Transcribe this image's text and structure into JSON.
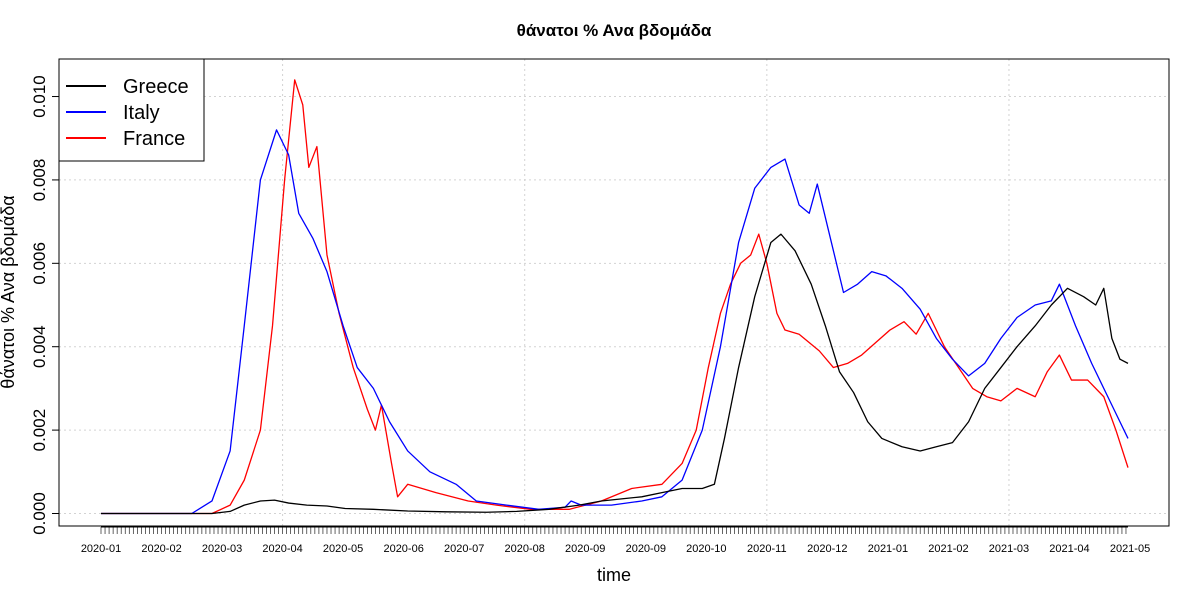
{
  "chart_data": {
    "type": "line",
    "title": "θάνατοι %  Ανα βδομάδα",
    "xlabel": "time",
    "ylabel": "θάνατοι %  Ανα βδομάδα",
    "x_range": [
      "2020-01-01",
      "2021-05-24"
    ],
    "ylim": [
      -0.0003,
      0.0109
    ],
    "y_ticks": [
      "0.000",
      "0.002",
      "0.004",
      "0.006",
      "0.008",
      "0.010"
    ],
    "y_tick_values": [
      0,
      0.002,
      0.004,
      0.006,
      0.008,
      0.01
    ],
    "x_tick_labels": [
      "2020-01",
      "2020-02",
      "2020-03",
      "2020-04",
      "2020-05",
      "2020-06",
      "2020-07",
      "2020-08",
      "2020-09",
      "2020-09",
      "2020-10",
      "2020-11",
      "2020-12",
      "2021-01",
      "2021-02",
      "2021-03",
      "2021-04",
      "2021-05"
    ],
    "x_tick_dates": [
      "2020-01-01",
      "2020-01-31",
      "2020-03-01",
      "2020-03-31",
      "2020-04-30",
      "2020-05-30",
      "2020-06-29",
      "2020-07-29",
      "2020-08-28",
      "2020-09-27",
      "2020-10-27",
      "2020-11-26",
      "2020-12-26",
      "2021-01-25",
      "2021-02-24",
      "2021-03-26",
      "2021-04-25",
      "2021-05-25"
    ],
    "grid": true,
    "legend_position": "top-left",
    "series": [
      {
        "name": "Greece",
        "color": "#000000",
        "points": [
          [
            "2020-01-01",
            0
          ],
          [
            "2020-02-25",
            0
          ],
          [
            "2020-03-05",
            5e-05
          ],
          [
            "2020-03-12",
            0.0002
          ],
          [
            "2020-03-20",
            0.0003
          ],
          [
            "2020-03-27",
            0.00032
          ],
          [
            "2020-04-03",
            0.00025
          ],
          [
            "2020-04-12",
            0.0002
          ],
          [
            "2020-04-22",
            0.00018
          ],
          [
            "2020-05-01",
            0.00012
          ],
          [
            "2020-05-15",
            0.0001
          ],
          [
            "2020-06-01",
            6e-05
          ],
          [
            "2020-06-20",
            4e-05
          ],
          [
            "2020-07-10",
            3e-05
          ],
          [
            "2020-07-25",
            5e-05
          ],
          [
            "2020-08-10",
            0.0001
          ],
          [
            "2020-08-25",
            0.0002
          ],
          [
            "2020-09-05",
            0.0003
          ],
          [
            "2020-09-15",
            0.00035
          ],
          [
            "2020-09-25",
            0.0004
          ],
          [
            "2020-10-05",
            0.0005
          ],
          [
            "2020-10-15",
            0.0006
          ],
          [
            "2020-10-25",
            0.0006
          ],
          [
            "2020-10-31",
            0.0007
          ],
          [
            "2020-11-05",
            0.0018
          ],
          [
            "2020-11-12",
            0.0035
          ],
          [
            "2020-11-20",
            0.0052
          ],
          [
            "2020-11-28",
            0.0065
          ],
          [
            "2020-12-03",
            0.0067
          ],
          [
            "2020-12-10",
            0.0063
          ],
          [
            "2020-12-18",
            0.0055
          ],
          [
            "2020-12-25",
            0.0045
          ],
          [
            "2021-01-01",
            0.0034
          ],
          [
            "2021-01-08",
            0.0029
          ],
          [
            "2021-01-15",
            0.0022
          ],
          [
            "2021-01-22",
            0.0018
          ],
          [
            "2021-02-01",
            0.0016
          ],
          [
            "2021-02-10",
            0.0015
          ],
          [
            "2021-02-18",
            0.0016
          ],
          [
            "2021-02-26",
            0.0017
          ],
          [
            "2021-03-06",
            0.0022
          ],
          [
            "2021-03-14",
            0.003
          ],
          [
            "2021-03-22",
            0.0035
          ],
          [
            "2021-03-30",
            0.004
          ],
          [
            "2021-04-08",
            0.0045
          ],
          [
            "2021-04-16",
            0.005
          ],
          [
            "2021-04-24",
            0.0054
          ],
          [
            "2021-05-02",
            0.0052
          ],
          [
            "2021-05-08",
            0.005
          ],
          [
            "2021-05-12",
            0.0054
          ],
          [
            "2021-05-16",
            0.0042
          ],
          [
            "2021-05-20",
            0.0037
          ],
          [
            "2021-05-24",
            0.0036
          ]
        ]
      },
      {
        "name": "Italy",
        "color": "#0000ff",
        "points": [
          [
            "2020-01-01",
            0
          ],
          [
            "2020-02-15",
            0
          ],
          [
            "2020-02-25",
            0.0003
          ],
          [
            "2020-03-05",
            0.0015
          ],
          [
            "2020-03-12",
            0.0045
          ],
          [
            "2020-03-20",
            0.008
          ],
          [
            "2020-03-28",
            0.0092
          ],
          [
            "2020-04-03",
            0.0086
          ],
          [
            "2020-04-08",
            0.0072
          ],
          [
            "2020-04-15",
            0.0066
          ],
          [
            "2020-04-22",
            0.0058
          ],
          [
            "2020-04-30",
            0.0045
          ],
          [
            "2020-05-07",
            0.0035
          ],
          [
            "2020-05-15",
            0.003
          ],
          [
            "2020-05-23",
            0.0022
          ],
          [
            "2020-06-01",
            0.0015
          ],
          [
            "2020-06-12",
            0.001
          ],
          [
            "2020-06-25",
            0.0007
          ],
          [
            "2020-07-05",
            0.0003
          ],
          [
            "2020-07-20",
            0.0002
          ],
          [
            "2020-08-05",
            0.0001
          ],
          [
            "2020-08-18",
            0.00015
          ],
          [
            "2020-08-21",
            0.0003
          ],
          [
            "2020-08-26",
            0.0002
          ],
          [
            "2020-09-10",
            0.0002
          ],
          [
            "2020-09-25",
            0.0003
          ],
          [
            "2020-10-05",
            0.0004
          ],
          [
            "2020-10-15",
            0.0008
          ],
          [
            "2020-10-25",
            0.002
          ],
          [
            "2020-11-03",
            0.004
          ],
          [
            "2020-11-12",
            0.0065
          ],
          [
            "2020-11-20",
            0.0078
          ],
          [
            "2020-11-28",
            0.0083
          ],
          [
            "2020-12-05",
            0.0085
          ],
          [
            "2020-12-12",
            0.0074
          ],
          [
            "2020-12-17",
            0.0072
          ],
          [
            "2020-12-21",
            0.0079
          ],
          [
            "2020-12-28",
            0.0065
          ],
          [
            "2021-01-03",
            0.0053
          ],
          [
            "2021-01-10",
            0.0055
          ],
          [
            "2021-01-17",
            0.0058
          ],
          [
            "2021-01-24",
            0.0057
          ],
          [
            "2021-02-01",
            0.0054
          ],
          [
            "2021-02-10",
            0.0049
          ],
          [
            "2021-02-18",
            0.0042
          ],
          [
            "2021-02-26",
            0.0037
          ],
          [
            "2021-03-06",
            0.0033
          ],
          [
            "2021-03-14",
            0.0036
          ],
          [
            "2021-03-22",
            0.0042
          ],
          [
            "2021-03-30",
            0.0047
          ],
          [
            "2021-04-08",
            0.005
          ],
          [
            "2021-04-16",
            0.0051
          ],
          [
            "2021-04-20",
            0.0055
          ],
          [
            "2021-04-28",
            0.0045
          ],
          [
            "2021-05-06",
            0.0036
          ],
          [
            "2021-05-14",
            0.0028
          ],
          [
            "2021-05-20",
            0.0022
          ],
          [
            "2021-05-24",
            0.0018
          ]
        ]
      },
      {
        "name": "France",
        "color": "#ff0000",
        "points": [
          [
            "2020-01-01",
            0
          ],
          [
            "2020-02-25",
            0
          ],
          [
            "2020-03-05",
            0.0002
          ],
          [
            "2020-03-12",
            0.0008
          ],
          [
            "2020-03-20",
            0.002
          ],
          [
            "2020-03-26",
            0.0045
          ],
          [
            "2020-04-01",
            0.008
          ],
          [
            "2020-04-06",
            0.0104
          ],
          [
            "2020-04-10",
            0.0098
          ],
          [
            "2020-04-13",
            0.0083
          ],
          [
            "2020-04-17",
            0.0088
          ],
          [
            "2020-04-22",
            0.0062
          ],
          [
            "2020-04-28",
            0.0048
          ],
          [
            "2020-05-05",
            0.0035
          ],
          [
            "2020-05-12",
            0.0025
          ],
          [
            "2020-05-16",
            0.002
          ],
          [
            "2020-05-19",
            0.0026
          ],
          [
            "2020-05-24",
            0.0012
          ],
          [
            "2020-05-27",
            0.0004
          ],
          [
            "2020-06-01",
            0.0007
          ],
          [
            "2020-06-15",
            0.0005
          ],
          [
            "2020-07-01",
            0.0003
          ],
          [
            "2020-07-15",
            0.0002
          ],
          [
            "2020-08-01",
            0.0001
          ],
          [
            "2020-08-20",
            0.0001
          ],
          [
            "2020-09-05",
            0.0003
          ],
          [
            "2020-09-20",
            0.0006
          ],
          [
            "2020-10-05",
            0.0007
          ],
          [
            "2020-10-15",
            0.0012
          ],
          [
            "2020-10-22",
            0.002
          ],
          [
            "2020-10-28",
            0.0035
          ],
          [
            "2020-11-03",
            0.0048
          ],
          [
            "2020-11-08",
            0.0055
          ],
          [
            "2020-11-13",
            0.006
          ],
          [
            "2020-11-18",
            0.0062
          ],
          [
            "2020-11-22",
            0.0067
          ],
          [
            "2020-11-26",
            0.006
          ],
          [
            "2020-12-01",
            0.0048
          ],
          [
            "2020-12-05",
            0.0044
          ],
          [
            "2020-12-12",
            0.0043
          ],
          [
            "2020-12-22",
            0.0039
          ],
          [
            "2020-12-29",
            0.0035
          ],
          [
            "2021-01-05",
            0.0036
          ],
          [
            "2021-01-12",
            0.0038
          ],
          [
            "2021-01-19",
            0.0041
          ],
          [
            "2021-01-26",
            0.0044
          ],
          [
            "2021-02-02",
            0.0046
          ],
          [
            "2021-02-08",
            0.0043
          ],
          [
            "2021-02-14",
            0.0048
          ],
          [
            "2021-02-22",
            0.004
          ],
          [
            "2021-03-01",
            0.0035
          ],
          [
            "2021-03-08",
            0.003
          ],
          [
            "2021-03-15",
            0.0028
          ],
          [
            "2021-03-22",
            0.0027
          ],
          [
            "2021-03-30",
            0.003
          ],
          [
            "2021-04-08",
            0.0028
          ],
          [
            "2021-04-14",
            0.0034
          ],
          [
            "2021-04-20",
            0.0038
          ],
          [
            "2021-04-26",
            0.0032
          ],
          [
            "2021-05-04",
            0.0032
          ],
          [
            "2021-05-12",
            0.0028
          ],
          [
            "2021-05-18",
            0.002
          ],
          [
            "2021-05-24",
            0.0011
          ]
        ]
      }
    ]
  }
}
